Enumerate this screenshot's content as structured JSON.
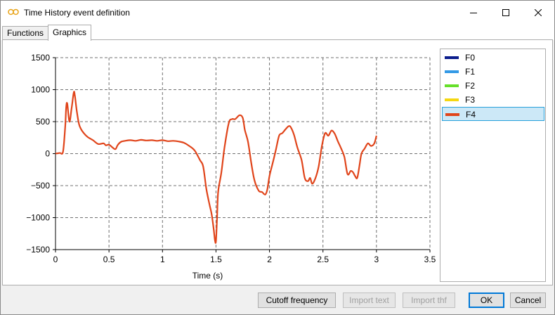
{
  "window": {
    "title": "Time History event definition"
  },
  "tabs": [
    {
      "label": "Functions"
    },
    {
      "label": "Graphics"
    }
  ],
  "legend": [
    {
      "label": "F0",
      "color": "#0b1d8c"
    },
    {
      "label": "F1",
      "color": "#3399e6"
    },
    {
      "label": "F2",
      "color": "#66e02a"
    },
    {
      "label": "F3",
      "color": "#f5d711"
    },
    {
      "label": "F4",
      "color": "#e0441a",
      "selected": true
    }
  ],
  "buttons": {
    "cutoff": "Cutoff frequency",
    "import_text": "Import text",
    "import_thf": "Import thf",
    "ok": "OK",
    "cancel": "Cancel"
  },
  "chart_data": {
    "type": "line",
    "xlabel": "Time (s)",
    "ylabel": "",
    "xlim": [
      0,
      3.5
    ],
    "ylim": [
      -1500,
      1500
    ],
    "xticks": [
      0,
      0.5,
      1,
      1.5,
      2,
      2.5,
      3,
      3.5
    ],
    "yticks": [
      1500,
      1000,
      500,
      0,
      -500,
      -1000,
      -1500
    ],
    "xtick_labels": [
      "0",
      "0.5",
      "1",
      "1.5",
      "2",
      "2.5",
      "3",
      "3.5"
    ],
    "ytick_labels": [
      "1500",
      "1000",
      "500",
      "0",
      "−500",
      "−1000",
      "−1500"
    ],
    "grid": true,
    "series": [
      {
        "name": "F4",
        "color": "#e0441a",
        "x": [
          0,
          0.04,
          0.07,
          0.09,
          0.1,
          0.11,
          0.13,
          0.15,
          0.17,
          0.18,
          0.2,
          0.22,
          0.24,
          0.27,
          0.3,
          0.35,
          0.4,
          0.45,
          0.47,
          0.5,
          0.53,
          0.56,
          0.58,
          0.6,
          0.62,
          0.65,
          0.7,
          0.75,
          0.8,
          0.85,
          0.9,
          0.95,
          1.0,
          1.05,
          1.1,
          1.15,
          1.2,
          1.25,
          1.3,
          1.35,
          1.38,
          1.41,
          1.44,
          1.46,
          1.48,
          1.49,
          1.5,
          1.51,
          1.52,
          1.55,
          1.58,
          1.62,
          1.65,
          1.68,
          1.72,
          1.75,
          1.77,
          1.8,
          1.83,
          1.86,
          1.9,
          1.93,
          1.96,
          1.98,
          2.0,
          2.03,
          2.06,
          2.09,
          2.12,
          2.15,
          2.18,
          2.2,
          2.23,
          2.26,
          2.3,
          2.33,
          2.36,
          2.38,
          2.4,
          2.43,
          2.46,
          2.49,
          2.52,
          2.55,
          2.58,
          2.61,
          2.64,
          2.67,
          2.7,
          2.73,
          2.76,
          2.78,
          2.8,
          2.82,
          2.84,
          2.86,
          2.89,
          2.92,
          2.95,
          2.98,
          3.0
        ],
        "y": [
          0,
          10,
          30,
          400,
          720,
          780,
          500,
          700,
          950,
          920,
          650,
          460,
          380,
          310,
          260,
          210,
          150,
          160,
          130,
          140,
          100,
          70,
          130,
          170,
          190,
          200,
          210,
          200,
          215,
          205,
          210,
          200,
          210,
          195,
          200,
          190,
          170,
          120,
          50,
          -100,
          -200,
          -550,
          -800,
          -950,
          -1200,
          -1350,
          -1370,
          -1000,
          -600,
          -300,
          100,
          480,
          540,
          540,
          600,
          560,
          370,
          180,
          -150,
          -420,
          -580,
          -600,
          -640,
          -560,
          -350,
          -150,
          60,
          280,
          320,
          380,
          430,
          410,
          290,
          100,
          -100,
          -380,
          -430,
          -380,
          -470,
          -380,
          -200,
          120,
          320,
          280,
          360,
          310,
          190,
          80,
          -50,
          -320,
          -270,
          -290,
          -350,
          -380,
          -200,
          0,
          80,
          160,
          120,
          160,
          280
        ]
      }
    ]
  }
}
